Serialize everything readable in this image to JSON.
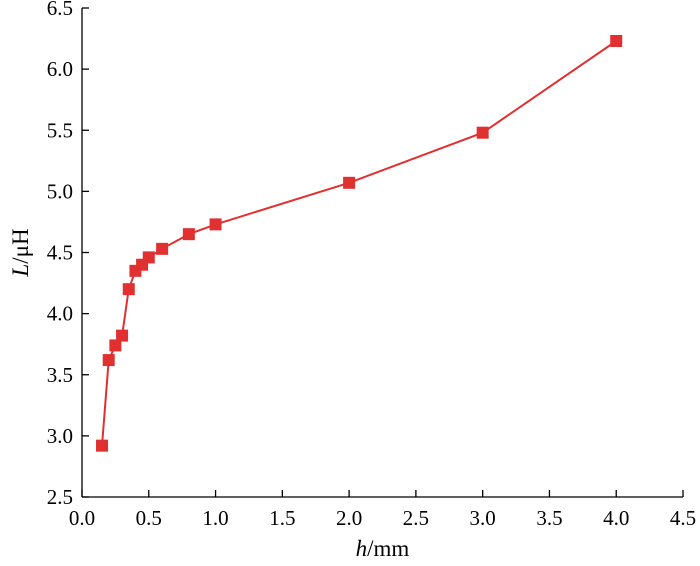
{
  "chart_data": {
    "type": "line",
    "xlabel": "h/mm",
    "xlabel_var": "h",
    "xlabel_unit": "/mm",
    "ylabel": "L/μH",
    "ylabel_var": "L",
    "ylabel_unit": "/μH",
    "xlim": [
      0.0,
      4.5
    ],
    "ylim": [
      2.5,
      6.5
    ],
    "xticks": [
      "0.0",
      "0.5",
      "1.0",
      "1.5",
      "2.0",
      "2.5",
      "3.0",
      "3.5",
      "4.0",
      "4.5"
    ],
    "yticks": [
      "2.5",
      "3.0",
      "3.5",
      "4.0",
      "4.5",
      "5.0",
      "5.5",
      "6.0",
      "6.5"
    ],
    "grid": false,
    "series": [
      {
        "color": "#e03030",
        "marker": "square",
        "x": [
          0.15,
          0.2,
          0.25,
          0.3,
          0.35,
          0.4,
          0.45,
          0.5,
          0.6,
          0.8,
          1.0,
          2.0,
          3.0,
          4.0
        ],
        "y": [
          2.92,
          3.62,
          3.74,
          3.82,
          4.2,
          4.35,
          4.4,
          4.46,
          4.53,
          4.65,
          4.73,
          5.07,
          5.48,
          6.23
        ]
      }
    ]
  }
}
